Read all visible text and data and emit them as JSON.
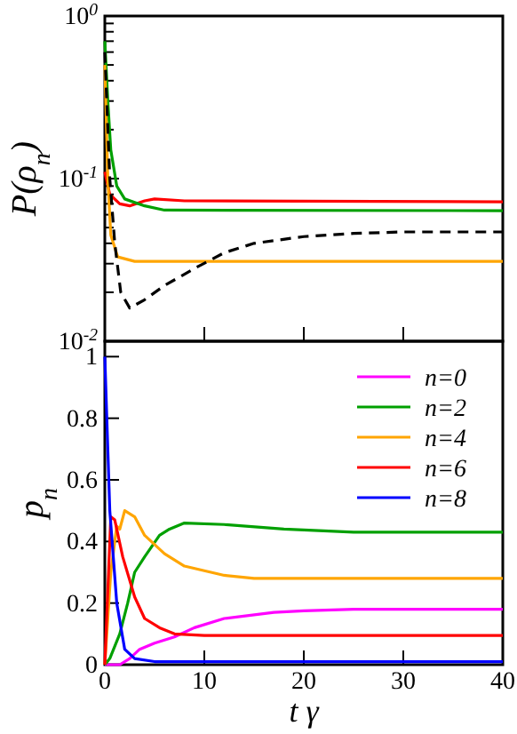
{
  "chart_data": [
    {
      "type": "line",
      "ylabel": "P(ρ$_{n}$)",
      "log": "y",
      "xlim": [
        0,
        40
      ],
      "xticks": [
        0,
        10,
        20,
        30,
        40
      ],
      "ylim": [
        0.01,
        1
      ],
      "tick_labels": "y",
      "grid": false,
      "legend": false,
      "yticks": [
        {
          "value": 0.01,
          "label": "10$^{-2}$"
        },
        {
          "value": 0.02,
          "label": null
        },
        {
          "value": 0.03,
          "label": null
        },
        {
          "value": 0.04,
          "label": null
        },
        {
          "value": 0.05,
          "label": null
        },
        {
          "value": 0.06,
          "label": null
        },
        {
          "value": 0.07,
          "label": null
        },
        {
          "value": 0.08,
          "label": null
        },
        {
          "value": 0.09,
          "label": null
        },
        {
          "value": 0.1,
          "label": "10$^{-1}$"
        },
        {
          "value": 0.2,
          "label": null
        },
        {
          "value": 0.3,
          "label": null
        },
        {
          "value": 0.4,
          "label": null
        },
        {
          "value": 0.5,
          "label": null
        },
        {
          "value": 0.6,
          "label": null
        },
        {
          "value": 0.7,
          "label": null
        },
        {
          "value": 0.8,
          "label": null
        },
        {
          "value": 0.9,
          "label": null
        },
        {
          "value": 1,
          "label": "10$^{0}$"
        }
      ],
      "series": [
        {
          "color": "#ff0000",
          "x": [
            0,
            0.5,
            1.5,
            2.5,
            4,
            5,
            8,
            40
          ],
          "values": [
            0.11,
            0.08,
            0.07,
            0.068,
            0.073,
            0.075,
            0.073,
            0.072
          ]
        },
        {
          "color": "#00a000",
          "x": [
            0,
            0.3,
            0.6,
            1.2,
            2,
            4,
            6,
            40
          ],
          "values": [
            0.7,
            0.3,
            0.15,
            0.09,
            0.075,
            0.068,
            0.064,
            0.0635
          ]
        },
        {
          "color": "#ffa500",
          "x": [
            0,
            0.3,
            0.6,
            1.3,
            3,
            40
          ],
          "values": [
            0.5,
            0.1,
            0.045,
            0.033,
            0.031,
            0.031
          ]
        },
        {
          "color": "#000000",
          "line_style": "dashed",
          "x": [
            0,
            0.5,
            1,
            1.6,
            2.5,
            4,
            6,
            9,
            12,
            15,
            20,
            25,
            30,
            40
          ],
          "values": [
            0.6,
            0.1,
            0.04,
            0.02,
            0.016,
            0.018,
            0.022,
            0.028,
            0.035,
            0.04,
            0.044,
            0.046,
            0.047,
            0.047
          ]
        }
      ]
    },
    {
      "type": "line",
      "xlabel": "t γ",
      "ylabel": "p$_{n}$",
      "xlim": [
        0,
        40
      ],
      "xticks": [
        0,
        10,
        20,
        30,
        40
      ],
      "ylim": [
        0,
        1.05
      ],
      "yticks": [
        0,
        0.2,
        0.4,
        0.6,
        0.8,
        1
      ],
      "grid": false,
      "legend": "top right",
      "series": [
        {
          "name": "n=0",
          "color": "#ff00ff",
          "x": [
            0,
            1.5,
            2.5,
            3.5,
            5,
            7,
            9,
            12,
            17,
            20,
            25,
            40
          ],
          "values": [
            0,
            0,
            0.02,
            0.05,
            0.07,
            0.09,
            0.12,
            0.15,
            0.17,
            0.175,
            0.18,
            0.18
          ]
        },
        {
          "name": "n=2",
          "color": "#00a000",
          "x": [
            0,
            0.5,
            1.5,
            2.3,
            3,
            4,
            5.5,
            6.5,
            8,
            12,
            18,
            25,
            40
          ],
          "values": [
            0,
            0.02,
            0.1,
            0.2,
            0.3,
            0.35,
            0.42,
            0.44,
            0.46,
            0.455,
            0.44,
            0.43,
            0.43
          ]
        },
        {
          "name": "n=4",
          "color": "#ffa500",
          "x": [
            0,
            0.6,
            1.2,
            1.5,
            2,
            3,
            4,
            6,
            8,
            12,
            15,
            40
          ],
          "values": [
            0,
            0.3,
            0.45,
            0.44,
            0.5,
            0.48,
            0.42,
            0.36,
            0.32,
            0.29,
            0.28,
            0.28
          ]
        },
        {
          "name": "n=6",
          "color": "#ff0000",
          "x": [
            0,
            0.6,
            1,
            1.8,
            3,
            4,
            5.5,
            7,
            10,
            40
          ],
          "values": [
            0,
            0.48,
            0.47,
            0.35,
            0.22,
            0.15,
            0.12,
            0.1,
            0.095,
            0.095
          ]
        },
        {
          "name": "n=8",
          "color": "#0000ff",
          "x": [
            0,
            0.5,
            1.2,
            2,
            3,
            5,
            40
          ],
          "values": [
            1,
            0.5,
            0.2,
            0.05,
            0.02,
            0.01,
            0.01
          ]
        }
      ]
    }
  ]
}
